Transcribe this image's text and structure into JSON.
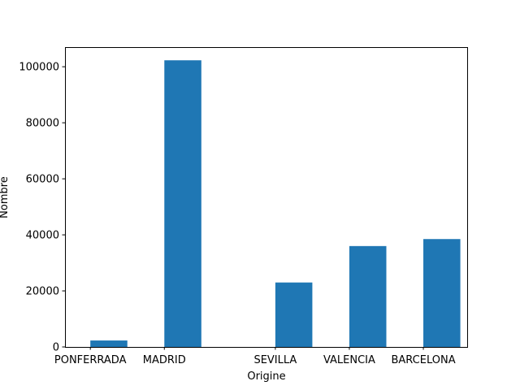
{
  "chart_data": {
    "type": "bar",
    "title": "",
    "xlabel": "Origine",
    "ylabel": "Nombre",
    "categories": [
      "PONFERRADA",
      "MADRID",
      "SEVILLA",
      "VALENCIA",
      "BARCELONA"
    ],
    "x_positions": [
      0,
      1,
      2.5,
      3.5,
      4.5
    ],
    "bar_centers": [
      0.25,
      1.25,
      2.75,
      3.75,
      4.75
    ],
    "bar_width": 0.5,
    "values": [
      2300,
      102300,
      23000,
      36000,
      38500
    ],
    "xlim": [
      -0.3425,
      5.0925
    ],
    "ylim": [
      0,
      107000
    ],
    "yticks": [
      0,
      20000,
      40000,
      60000,
      80000,
      100000
    ],
    "ytick_labels": [
      "0",
      "20000",
      "40000",
      "60000",
      "80000",
      "100000"
    ],
    "grid": false,
    "colors": {
      "bar": "#1f77b4",
      "axis": "#000000"
    }
  }
}
